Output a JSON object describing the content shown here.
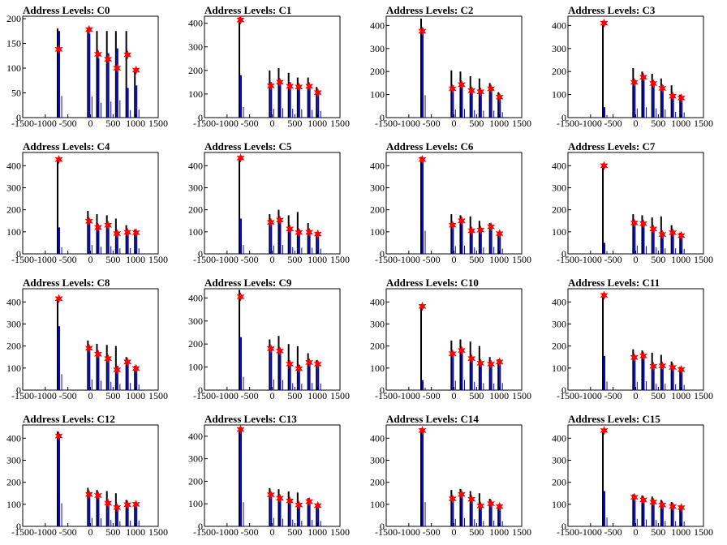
{
  "figure": {
    "background": "#ffffff"
  },
  "colors": {
    "hist_black": "#000000",
    "hist_blue": "#0000ee",
    "marker": "#ff0000"
  },
  "chart_data": [
    {
      "type": "bar",
      "title": "Address Levels: C0",
      "xlim": [
        -1500,
        1500
      ],
      "ylim": [
        0,
        205
      ],
      "xticks": [
        "-1500",
        "-1000",
        "-500",
        "0",
        "500",
        "1000",
        "1500"
      ],
      "yticks": [
        "0",
        "50",
        "100",
        "150",
        "200"
      ],
      "peaks": [
        {
          "x": -700,
          "y": 138,
          "black": 180,
          "blue": 175
        },
        {
          "x": -30,
          "y": 178,
          "black": 180,
          "blue": 170
        },
        {
          "x": 170,
          "y": 128,
          "black": 175,
          "blue": 120
        },
        {
          "x": 390,
          "y": 118,
          "black": 175,
          "blue": 130
        },
        {
          "x": 590,
          "y": 100,
          "black": 175,
          "blue": 140
        },
        {
          "x": 820,
          "y": 127,
          "black": 175,
          "blue": 60
        },
        {
          "x": 1010,
          "y": 96,
          "black": 95,
          "blue": 65
        }
      ]
    },
    {
      "type": "bar",
      "title": "Address Levels: C1",
      "xlim": [
        -1500,
        1500
      ],
      "ylim": [
        0,
        430
      ],
      "xticks": [
        "-1500",
        "-1000",
        "-500",
        "0",
        "500",
        "1000",
        "1500"
      ],
      "yticks": [
        "0",
        "100",
        "200",
        "300",
        "400"
      ],
      "peaks": [
        {
          "x": -700,
          "y": 414,
          "black": 425,
          "blue": 180
        },
        {
          "x": -30,
          "y": 135,
          "black": 200,
          "blue": 150
        },
        {
          "x": 170,
          "y": 150,
          "black": 210,
          "blue": 160
        },
        {
          "x": 390,
          "y": 133,
          "black": 190,
          "blue": 150
        },
        {
          "x": 590,
          "y": 130,
          "black": 170,
          "blue": 140
        },
        {
          "x": 820,
          "y": 133,
          "black": 170,
          "blue": 130
        },
        {
          "x": 1010,
          "y": 106,
          "black": 130,
          "blue": 110
        }
      ]
    },
    {
      "type": "bar",
      "title": "Address Levels: C2",
      "xlim": [
        -1500,
        1500
      ],
      "ylim": [
        0,
        440
      ],
      "xticks": [
        "-1500",
        "-1000",
        "-500",
        "0",
        "500",
        "1000",
        "1500"
      ],
      "yticks": [
        "0",
        "100",
        "200",
        "300",
        "400"
      ],
      "peaks": [
        {
          "x": -700,
          "y": 375,
          "black": 430,
          "blue": 390
        },
        {
          "x": -30,
          "y": 125,
          "black": 205,
          "blue": 140
        },
        {
          "x": 170,
          "y": 143,
          "black": 200,
          "blue": 150
        },
        {
          "x": 390,
          "y": 117,
          "black": 180,
          "blue": 130
        },
        {
          "x": 590,
          "y": 112,
          "black": 170,
          "blue": 120
        },
        {
          "x": 820,
          "y": 125,
          "black": 150,
          "blue": 120
        },
        {
          "x": 1010,
          "y": 89,
          "black": 110,
          "blue": 95
        }
      ]
    },
    {
      "type": "bar",
      "title": "Address Levels: C3",
      "xlim": [
        -1500,
        1500
      ],
      "ylim": [
        0,
        440
      ],
      "xticks": [
        "-1500",
        "-1000",
        "-500",
        "0",
        "500",
        "1000",
        "1500"
      ],
      "yticks": [
        "0",
        "100",
        "200",
        "300",
        "400"
      ],
      "peaks": [
        {
          "x": -700,
          "y": 410,
          "black": 420,
          "blue": 45
        },
        {
          "x": -30,
          "y": 153,
          "black": 215,
          "blue": 160
        },
        {
          "x": 170,
          "y": 175,
          "black": 200,
          "blue": 180
        },
        {
          "x": 390,
          "y": 148,
          "black": 190,
          "blue": 160
        },
        {
          "x": 590,
          "y": 127,
          "black": 170,
          "blue": 140
        },
        {
          "x": 820,
          "y": 93,
          "black": 140,
          "blue": 100
        },
        {
          "x": 1010,
          "y": 85,
          "black": 100,
          "blue": 90
        }
      ]
    },
    {
      "type": "bar",
      "title": "Address Levels: C4",
      "xlim": [
        -1500,
        1500
      ],
      "ylim": [
        0,
        460
      ],
      "xticks": [
        "-1500",
        "-1000",
        "-500",
        "0",
        "500",
        "1000",
        "1500"
      ],
      "yticks": [
        "0",
        "100",
        "200",
        "300",
        "400"
      ],
      "peaks": [
        {
          "x": -700,
          "y": 428,
          "black": 430,
          "blue": 120
        },
        {
          "x": -30,
          "y": 148,
          "black": 195,
          "blue": 160
        },
        {
          "x": 170,
          "y": 120,
          "black": 180,
          "blue": 130
        },
        {
          "x": 390,
          "y": 130,
          "black": 175,
          "blue": 140
        },
        {
          "x": 590,
          "y": 92,
          "black": 160,
          "blue": 100
        },
        {
          "x": 820,
          "y": 98,
          "black": 130,
          "blue": 105
        },
        {
          "x": 1010,
          "y": 96,
          "black": 110,
          "blue": 100
        }
      ]
    },
    {
      "type": "bar",
      "title": "Address Levels: C5",
      "xlim": [
        -1500,
        1500
      ],
      "ylim": [
        0,
        460
      ],
      "xticks": [
        "-1500",
        "-1000",
        "-500",
        "0",
        "500",
        "1000",
        "1500"
      ],
      "yticks": [
        "0",
        "100",
        "200",
        "300",
        "400"
      ],
      "peaks": [
        {
          "x": -700,
          "y": 435,
          "black": 440,
          "blue": 160
        },
        {
          "x": -30,
          "y": 143,
          "black": 180,
          "blue": 150
        },
        {
          "x": 170,
          "y": 153,
          "black": 200,
          "blue": 160
        },
        {
          "x": 390,
          "y": 113,
          "black": 175,
          "blue": 120
        },
        {
          "x": 590,
          "y": 97,
          "black": 190,
          "blue": 110
        },
        {
          "x": 820,
          "y": 98,
          "black": 140,
          "blue": 110
        },
        {
          "x": 1010,
          "y": 90,
          "black": 100,
          "blue": 95
        }
      ]
    },
    {
      "type": "bar",
      "title": "Address Levels: C6",
      "xlim": [
        -1500,
        1500
      ],
      "ylim": [
        0,
        460
      ],
      "xticks": [
        "-1500",
        "-1000",
        "-500",
        "0",
        "500",
        "1000",
        "1500"
      ],
      "yticks": [
        "0",
        "100",
        "200",
        "300",
        "400"
      ],
      "peaks": [
        {
          "x": -700,
          "y": 428,
          "black": 440,
          "blue": 420
        },
        {
          "x": -30,
          "y": 130,
          "black": 180,
          "blue": 140
        },
        {
          "x": 170,
          "y": 150,
          "black": 175,
          "blue": 150
        },
        {
          "x": 390,
          "y": 105,
          "black": 170,
          "blue": 115
        },
        {
          "x": 590,
          "y": 108,
          "black": 150,
          "blue": 115
        },
        {
          "x": 820,
          "y": 123,
          "black": 140,
          "blue": 125
        },
        {
          "x": 1010,
          "y": 92,
          "black": 100,
          "blue": 95
        }
      ]
    },
    {
      "type": "bar",
      "title": "Address Levels: C7",
      "xlim": [
        -1500,
        1500
      ],
      "ylim": [
        0,
        460
      ],
      "xticks": [
        "-1500",
        "-1000",
        "-500",
        "0",
        "500",
        "1000",
        "1500"
      ],
      "yticks": [
        "0",
        "100",
        "200",
        "300",
        "400"
      ],
      "peaks": [
        {
          "x": -700,
          "y": 400,
          "black": 410,
          "blue": 50
        },
        {
          "x": -30,
          "y": 140,
          "black": 180,
          "blue": 150
        },
        {
          "x": 170,
          "y": 137,
          "black": 175,
          "blue": 140
        },
        {
          "x": 390,
          "y": 113,
          "black": 165,
          "blue": 120
        },
        {
          "x": 590,
          "y": 88,
          "black": 170,
          "blue": 100
        },
        {
          "x": 820,
          "y": 96,
          "black": 130,
          "blue": 100
        },
        {
          "x": 1010,
          "y": 83,
          "black": 95,
          "blue": 90
        }
      ]
    },
    {
      "type": "bar",
      "title": "Address Levels: C8",
      "xlim": [
        -1500,
        1500
      ],
      "ylim": [
        0,
        460
      ],
      "xticks": [
        "-1500",
        "-1000",
        "-500",
        "0",
        "500",
        "1000",
        "1500"
      ],
      "yticks": [
        "0",
        "100",
        "200",
        "300",
        "400"
      ],
      "peaks": [
        {
          "x": -700,
          "y": 415,
          "black": 420,
          "blue": 290
        },
        {
          "x": -30,
          "y": 190,
          "black": 225,
          "blue": 195
        },
        {
          "x": 170,
          "y": 163,
          "black": 210,
          "blue": 170
        },
        {
          "x": 390,
          "y": 143,
          "black": 205,
          "blue": 150
        },
        {
          "x": 590,
          "y": 92,
          "black": 200,
          "blue": 110
        },
        {
          "x": 820,
          "y": 128,
          "black": 150,
          "blue": 130
        },
        {
          "x": 1010,
          "y": 98,
          "black": 110,
          "blue": 100
        }
      ]
    },
    {
      "type": "bar",
      "title": "Address Levels: C9",
      "xlim": [
        -1500,
        1500
      ],
      "ylim": [
        0,
        440
      ],
      "xticks": [
        "-1500",
        "-1000",
        "-500",
        "0",
        "500",
        "1000",
        "1500"
      ],
      "yticks": [
        "0",
        "100",
        "200",
        "300",
        "400"
      ],
      "peaks": [
        {
          "x": -700,
          "y": 405,
          "black": 435,
          "blue": 230
        },
        {
          "x": -30,
          "y": 180,
          "black": 220,
          "blue": 185
        },
        {
          "x": 170,
          "y": 170,
          "black": 235,
          "blue": 175
        },
        {
          "x": 390,
          "y": 113,
          "black": 200,
          "blue": 120
        },
        {
          "x": 590,
          "y": 93,
          "black": 190,
          "blue": 110
        },
        {
          "x": 820,
          "y": 120,
          "black": 160,
          "blue": 125
        },
        {
          "x": 1010,
          "y": 113,
          "black": 130,
          "blue": 115
        }
      ]
    },
    {
      "type": "bar",
      "title": "Address Levels: C10",
      "xlim": [
        -1500,
        1500
      ],
      "ylim": [
        0,
        460
      ],
      "xticks": [
        "-1500",
        "-1000",
        "-500",
        "0",
        "500",
        "1000",
        "1500"
      ],
      "yticks": [
        "0",
        "100",
        "200",
        "300",
        "400"
      ],
      "peaks": [
        {
          "x": -700,
          "y": 380,
          "black": 390,
          "blue": 45
        },
        {
          "x": -30,
          "y": 165,
          "black": 225,
          "blue": 170
        },
        {
          "x": 170,
          "y": 180,
          "black": 230,
          "blue": 185
        },
        {
          "x": 390,
          "y": 143,
          "black": 220,
          "blue": 150
        },
        {
          "x": 590,
          "y": 122,
          "black": 200,
          "blue": 125
        },
        {
          "x": 820,
          "y": 118,
          "black": 150,
          "blue": 120
        },
        {
          "x": 1010,
          "y": 128,
          "black": 140,
          "blue": 130
        }
      ]
    },
    {
      "type": "bar",
      "title": "Address Levels: C11",
      "xlim": [
        -1500,
        1500
      ],
      "ylim": [
        0,
        460
      ],
      "xticks": [
        "-1500",
        "-1000",
        "-500",
        "0",
        "500",
        "1000",
        "1500"
      ],
      "yticks": [
        "0",
        "100",
        "200",
        "300",
        "400"
      ],
      "peaks": [
        {
          "x": -700,
          "y": 430,
          "black": 440,
          "blue": 155
        },
        {
          "x": -30,
          "y": 148,
          "black": 185,
          "blue": 150
        },
        {
          "x": 170,
          "y": 155,
          "black": 180,
          "blue": 160
        },
        {
          "x": 390,
          "y": 108,
          "black": 170,
          "blue": 115
        },
        {
          "x": 590,
          "y": 110,
          "black": 160,
          "blue": 115
        },
        {
          "x": 820,
          "y": 103,
          "black": 130,
          "blue": 105
        },
        {
          "x": 1010,
          "y": 93,
          "black": 105,
          "blue": 95
        }
      ]
    },
    {
      "type": "bar",
      "title": "Address Levels: C12",
      "xlim": [
        -1500,
        1500
      ],
      "ylim": [
        0,
        460
      ],
      "xticks": [
        "-1500",
        "-1000",
        "-500",
        "0",
        "500",
        "1000",
        "1500"
      ],
      "yticks": [
        "0",
        "100",
        "200",
        "300",
        "400"
      ],
      "peaks": [
        {
          "x": -700,
          "y": 410,
          "black": 430,
          "blue": 420
        },
        {
          "x": -30,
          "y": 145,
          "black": 175,
          "blue": 150
        },
        {
          "x": 170,
          "y": 140,
          "black": 165,
          "blue": 145
        },
        {
          "x": 390,
          "y": 105,
          "black": 160,
          "blue": 115
        },
        {
          "x": 590,
          "y": 85,
          "black": 150,
          "blue": 95
        },
        {
          "x": 820,
          "y": 98,
          "black": 120,
          "blue": 105
        },
        {
          "x": 1010,
          "y": 100,
          "black": 110,
          "blue": 105
        }
      ]
    },
    {
      "type": "bar",
      "title": "Address Levels: C13",
      "xlim": [
        -1500,
        1500
      ],
      "ylim": [
        0,
        450
      ],
      "xticks": [
        "-1500",
        "-1000",
        "-500",
        "0",
        "500",
        "1000",
        "1500"
      ],
      "yticks": [
        "0",
        "100",
        "200",
        "300",
        "400"
      ],
      "peaks": [
        {
          "x": -700,
          "y": 430,
          "black": 440,
          "blue": 430
        },
        {
          "x": -30,
          "y": 140,
          "black": 170,
          "blue": 150
        },
        {
          "x": 170,
          "y": 125,
          "black": 165,
          "blue": 135
        },
        {
          "x": 390,
          "y": 113,
          "black": 155,
          "blue": 120
        },
        {
          "x": 590,
          "y": 95,
          "black": 150,
          "blue": 100
        },
        {
          "x": 820,
          "y": 110,
          "black": 125,
          "blue": 115
        },
        {
          "x": 1010,
          "y": 92,
          "black": 100,
          "blue": 95
        }
      ]
    },
    {
      "type": "bar",
      "title": "Address Levels: C14",
      "xlim": [
        -1500,
        1500
      ],
      "ylim": [
        0,
        460
      ],
      "xticks": [
        "-1500",
        "-1000",
        "-500",
        "0",
        "500",
        "1000",
        "1500"
      ],
      "yticks": [
        "0",
        "100",
        "200",
        "300",
        "400"
      ],
      "peaks": [
        {
          "x": -700,
          "y": 435,
          "black": 445,
          "blue": 440
        },
        {
          "x": -30,
          "y": 125,
          "black": 165,
          "blue": 135
        },
        {
          "x": 170,
          "y": 145,
          "black": 170,
          "blue": 150
        },
        {
          "x": 390,
          "y": 123,
          "black": 160,
          "blue": 130
        },
        {
          "x": 590,
          "y": 93,
          "black": 150,
          "blue": 100
        },
        {
          "x": 820,
          "y": 103,
          "black": 125,
          "blue": 105
        },
        {
          "x": 1010,
          "y": 90,
          "black": 100,
          "blue": 95
        }
      ]
    },
    {
      "type": "bar",
      "title": "Address Levels: C15",
      "xlim": [
        -1500,
        1500
      ],
      "ylim": [
        0,
        460
      ],
      "xticks": [
        "-1500",
        "-1000",
        "-500",
        "0",
        "500",
        "1000",
        "1500"
      ],
      "yticks": [
        "0",
        "100",
        "200",
        "300",
        "400"
      ],
      "peaks": [
        {
          "x": -700,
          "y": 435,
          "black": 440,
          "blue": 160
        },
        {
          "x": -30,
          "y": 132,
          "black": 145,
          "blue": 135
        },
        {
          "x": 170,
          "y": 120,
          "black": 140,
          "blue": 125
        },
        {
          "x": 390,
          "y": 110,
          "black": 135,
          "blue": 115
        },
        {
          "x": 590,
          "y": 97,
          "black": 120,
          "blue": 100
        },
        {
          "x": 820,
          "y": 90,
          "black": 110,
          "blue": 95
        },
        {
          "x": 1010,
          "y": 85,
          "black": 95,
          "blue": 88
        }
      ]
    }
  ]
}
